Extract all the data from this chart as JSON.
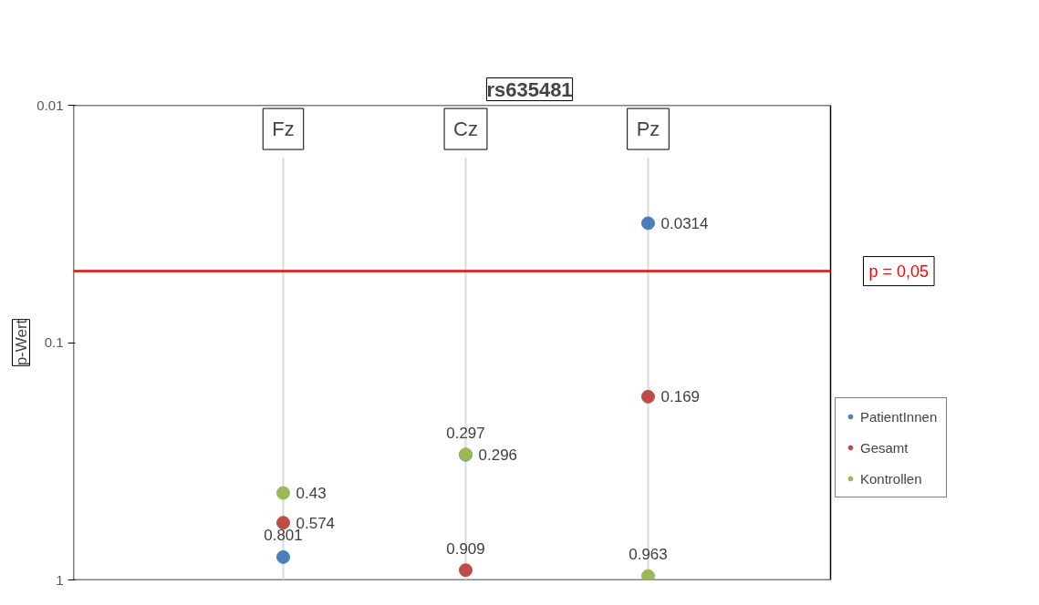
{
  "chart_data": {
    "type": "scatter",
    "title": "rs635481",
    "ylabel": "p-Wert",
    "categories": [
      "Fz",
      "Cz",
      "Pz"
    ],
    "series": [
      {
        "name": "PatientInnen",
        "color": "#4a7ebb",
        "values": [
          0.801,
          0.297,
          0.0314
        ]
      },
      {
        "name": "Gesamt",
        "color": "#be4b48",
        "values": [
          0.574,
          0.909,
          0.169
        ]
      },
      {
        "name": "Kontrollen",
        "color": "#98b954",
        "values": [
          0.43,
          0.296,
          0.963
        ]
      }
    ],
    "log": true,
    "ylim": [
      1,
      0.01
    ],
    "yticks": [
      0.01,
      0.1,
      1
    ],
    "ref_lines": [
      {
        "axis": "y",
        "value": 0.05,
        "label": "p = 0,05",
        "color": "#ff0000"
      }
    ],
    "grid": "x",
    "legend": "right",
    "marker": "circle",
    "data_labels": true
  }
}
